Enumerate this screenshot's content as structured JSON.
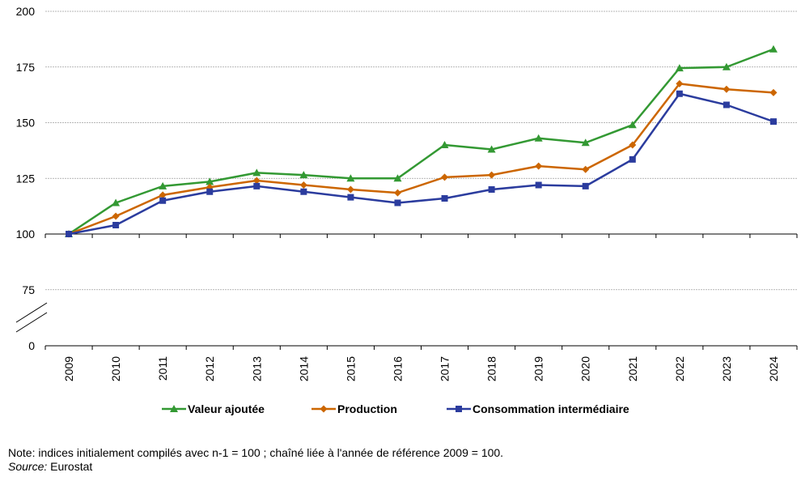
{
  "chart_data": {
    "type": "line",
    "x": [
      "2009",
      "2010",
      "2011",
      "2012",
      "2013",
      "2014",
      "2015",
      "2016",
      "2017",
      "2018",
      "2019",
      "2020",
      "2021",
      "2022",
      "2023",
      "2024"
    ],
    "yticks": [
      0,
      75,
      100,
      125,
      150,
      175,
      200
    ],
    "ylim": [
      0,
      200
    ],
    "y_axis_break": [
      0,
      75
    ],
    "grid": true,
    "legend_position": "bottom",
    "series": [
      {
        "name": "Valeur ajoutée",
        "color": "#339933",
        "marker": "triangle",
        "values": [
          100,
          114,
          121.5,
          123.5,
          127.5,
          126.5,
          125,
          125,
          140,
          138,
          143,
          141,
          149,
          174.5,
          175,
          183
        ]
      },
      {
        "name": "Production",
        "color": "#cc6600",
        "marker": "diamond",
        "values": [
          100,
          108,
          117.5,
          121,
          124,
          122,
          120,
          118.5,
          125.5,
          126.5,
          130.5,
          129,
          140,
          167.5,
          165,
          163.5
        ]
      },
      {
        "name": "Consommation intermédiaire",
        "color": "#2b3c9e",
        "marker": "square",
        "values": [
          100,
          104,
          115,
          119,
          121.5,
          119,
          116.5,
          114,
          116,
          120,
          122,
          121.5,
          133.5,
          163,
          158,
          150.5
        ]
      }
    ]
  },
  "notes": {
    "note": "Note: indices initialement compilés avec n-1 = 100 ; chaîné liée à l'année de référence 2009 = 100.",
    "source_label": "Source:",
    "source_value": " Eurostat"
  }
}
